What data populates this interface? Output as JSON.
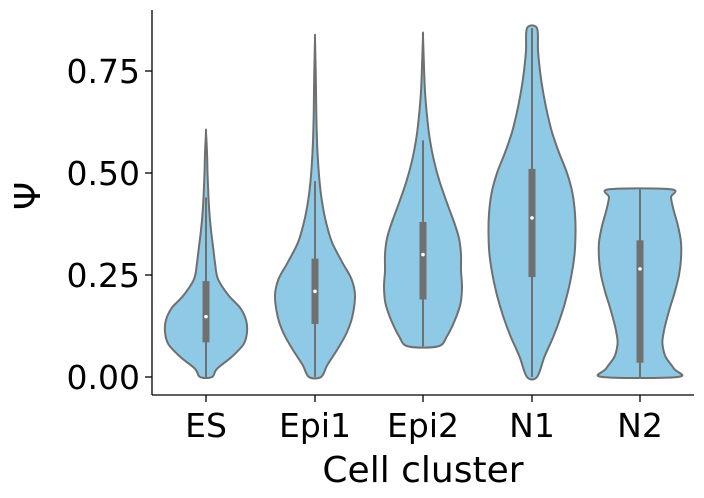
{
  "chart_data": {
    "type": "violin",
    "xlabel": "Cell cluster",
    "ylabel": "Ψ",
    "ylim": [
      -0.045,
      0.9
    ],
    "yticks": [
      "0.00",
      "0.25",
      "0.50",
      "0.75"
    ],
    "ytick_values": [
      0,
      0.25,
      0.5,
      0.75
    ],
    "grid": false,
    "fill_color": "#8ecae6",
    "edge_color": "#6f6f6f",
    "box_color": "#707070",
    "categories": [
      "ES",
      "Epi1",
      "Epi2",
      "N1",
      "N2"
    ],
    "violins": [
      {
        "category": "ES",
        "min": 0,
        "max": 0.6,
        "q1": 0.085,
        "median": 0.148,
        "q3": 0.235,
        "whisker_low": 0,
        "whisker_high": 0.44,
        "profile": [
          [
            0,
            0.12
          ],
          [
            0.02,
            0.22
          ],
          [
            0.05,
            0.52
          ],
          [
            0.08,
            0.75
          ],
          [
            0.11,
            0.82
          ],
          [
            0.14,
            0.8
          ],
          [
            0.17,
            0.68
          ],
          [
            0.2,
            0.45
          ],
          [
            0.24,
            0.24
          ],
          [
            0.28,
            0.18
          ],
          [
            0.32,
            0.14
          ],
          [
            0.36,
            0.1
          ],
          [
            0.4,
            0.07
          ],
          [
            0.44,
            0.05
          ],
          [
            0.5,
            0.03
          ],
          [
            0.55,
            0.02
          ],
          [
            0.6,
            0.0
          ]
        ]
      },
      {
        "category": "Epi1",
        "min": 0,
        "max": 0.83,
        "q1": 0.13,
        "median": 0.21,
        "q3": 0.29,
        "whisker_low": 0,
        "whisker_high": 0.48,
        "profile": [
          [
            0,
            0.12
          ],
          [
            0.03,
            0.25
          ],
          [
            0.07,
            0.46
          ],
          [
            0.11,
            0.64
          ],
          [
            0.15,
            0.75
          ],
          [
            0.2,
            0.8
          ],
          [
            0.24,
            0.73
          ],
          [
            0.28,
            0.55
          ],
          [
            0.33,
            0.34
          ],
          [
            0.38,
            0.22
          ],
          [
            0.43,
            0.14
          ],
          [
            0.48,
            0.09
          ],
          [
            0.55,
            0.05
          ],
          [
            0.62,
            0.03
          ],
          [
            0.7,
            0.02
          ],
          [
            0.76,
            0.012
          ],
          [
            0.83,
            0.0
          ]
        ]
      },
      {
        "category": "Epi2",
        "min": 0.075,
        "max": 0.835,
        "q1": 0.19,
        "median": 0.3,
        "q3": 0.38,
        "whisker_low": 0.075,
        "whisker_high": 0.58,
        "profile": [
          [
            0.075,
            0.3
          ],
          [
            0.1,
            0.48
          ],
          [
            0.14,
            0.64
          ],
          [
            0.18,
            0.75
          ],
          [
            0.22,
            0.78
          ],
          [
            0.26,
            0.76
          ],
          [
            0.3,
            0.76
          ],
          [
            0.34,
            0.72
          ],
          [
            0.38,
            0.62
          ],
          [
            0.43,
            0.47
          ],
          [
            0.48,
            0.33
          ],
          [
            0.53,
            0.22
          ],
          [
            0.58,
            0.14
          ],
          [
            0.64,
            0.08
          ],
          [
            0.7,
            0.04
          ],
          [
            0.76,
            0.02
          ],
          [
            0.835,
            0.0
          ]
        ]
      },
      {
        "category": "N1",
        "min": 0,
        "max": 0.855,
        "q1": 0.245,
        "median": 0.39,
        "q3": 0.51,
        "whisker_low": 0,
        "whisker_high": 0.855,
        "profile": [
          [
            0,
            0.1
          ],
          [
            0.05,
            0.25
          ],
          [
            0.1,
            0.43
          ],
          [
            0.15,
            0.58
          ],
          [
            0.2,
            0.7
          ],
          [
            0.25,
            0.79
          ],
          [
            0.3,
            0.85
          ],
          [
            0.35,
            0.87
          ],
          [
            0.4,
            0.86
          ],
          [
            0.45,
            0.81
          ],
          [
            0.5,
            0.7
          ],
          [
            0.55,
            0.54
          ],
          [
            0.6,
            0.4
          ],
          [
            0.65,
            0.3
          ],
          [
            0.7,
            0.22
          ],
          [
            0.75,
            0.16
          ],
          [
            0.8,
            0.12
          ],
          [
            0.855,
            0.1
          ]
        ]
      },
      {
        "category": "N2",
        "min": 0,
        "max": 0.46,
        "q1": 0.035,
        "median": 0.265,
        "q3": 0.335,
        "whisker_low": 0,
        "whisker_high": 0.46,
        "profile": [
          [
            0,
            0.75
          ],
          [
            0.02,
            0.68
          ],
          [
            0.05,
            0.51
          ],
          [
            0.08,
            0.45
          ],
          [
            0.1,
            0.46
          ],
          [
            0.13,
            0.51
          ],
          [
            0.17,
            0.6
          ],
          [
            0.21,
            0.7
          ],
          [
            0.25,
            0.78
          ],
          [
            0.29,
            0.82
          ],
          [
            0.33,
            0.82
          ],
          [
            0.37,
            0.76
          ],
          [
            0.41,
            0.67
          ],
          [
            0.44,
            0.62
          ],
          [
            0.46,
            0.62
          ]
        ]
      }
    ]
  }
}
